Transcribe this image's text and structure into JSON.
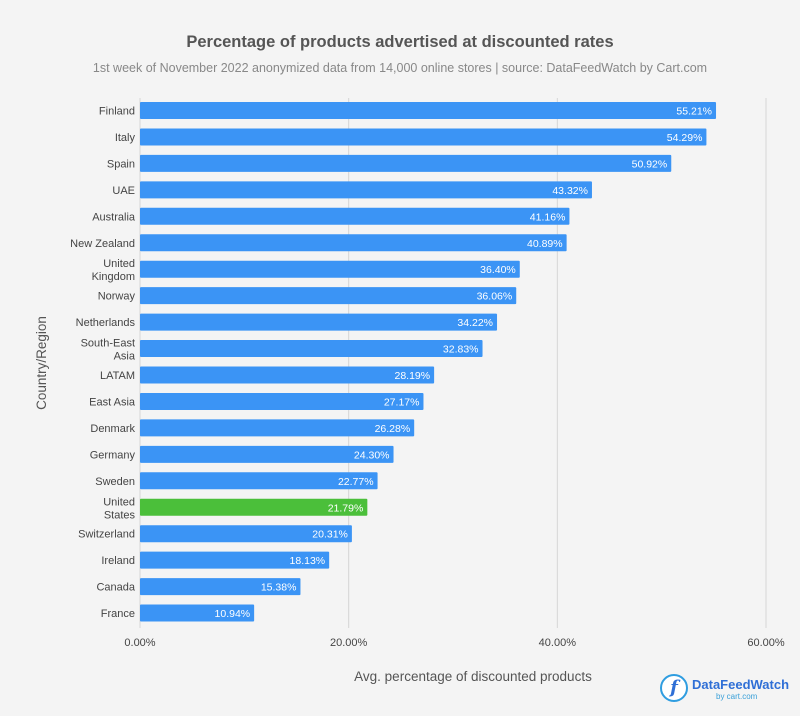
{
  "chart_data": {
    "type": "bar",
    "orientation": "horizontal",
    "title": "Percentage of products advertised at discounted rates",
    "subtitle": "1st week of November 2022 anonymized data from 14,000 online stores | source: DataFeedWatch by Cart.com",
    "xlabel": "Avg. percentage of discounted products",
    "ylabel": "Country/Region",
    "xlim": [
      0,
      60
    ],
    "xticks": [
      "0.00%",
      "20.00%",
      "40.00%",
      "60.00%"
    ],
    "categories": [
      "Finland",
      "Italy",
      "Spain",
      "UAE",
      "Australia",
      "New Zealand",
      "United Kingdom",
      "Norway",
      "Netherlands",
      "South-East Asia",
      "LATAM",
      "East Asia",
      "Denmark",
      "Germany",
      "Sweden",
      "United States",
      "Switzerland",
      "Ireland",
      "Canada",
      "France"
    ],
    "values": [
      55.21,
      54.29,
      50.92,
      43.32,
      41.16,
      40.89,
      36.4,
      36.06,
      34.22,
      32.83,
      28.19,
      27.17,
      26.28,
      24.3,
      22.77,
      21.79,
      20.31,
      18.13,
      15.38,
      10.94
    ],
    "value_labels": [
      "55.21%",
      "54.29%",
      "50.92%",
      "43.32%",
      "41.16%",
      "40.89%",
      "36.40%",
      "36.06%",
      "34.22%",
      "32.83%",
      "28.19%",
      "27.17%",
      "26.28%",
      "24.30%",
      "22.77%",
      "21.79%",
      "20.31%",
      "18.13%",
      "15.38%",
      "10.94%"
    ],
    "highlight_category": "United States",
    "colors": {
      "bar": "#3b94f5",
      "highlight": "#4bbf3a",
      "grid": "#d6d6d6",
      "background": "#f4f4f4"
    },
    "grid": true
  },
  "logo": {
    "mark": "f",
    "name": "DataFeedWatch",
    "sub": "by cart.com"
  }
}
